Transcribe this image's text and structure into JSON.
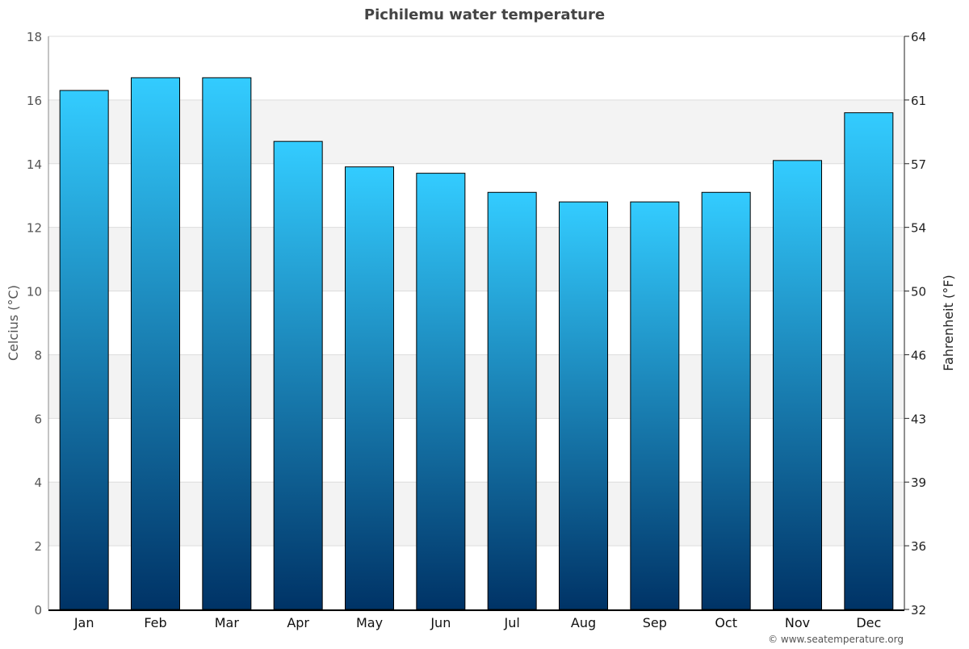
{
  "chart_data": {
    "type": "bar",
    "title": "Pichilemu water temperature",
    "ylabel": "Celcius (°C)",
    "ylabel_right": "Fahrenheit (°F)",
    "categories": [
      "Jan",
      "Feb",
      "Mar",
      "Apr",
      "May",
      "Jun",
      "Jul",
      "Aug",
      "Sep",
      "Oct",
      "Nov",
      "Dec"
    ],
    "values": [
      16.3,
      16.7,
      16.7,
      14.7,
      13.9,
      13.7,
      13.1,
      12.8,
      12.8,
      13.1,
      14.1,
      15.6
    ],
    "ylim": [
      0,
      18
    ],
    "yticks": [
      0,
      2,
      4,
      6,
      8,
      10,
      12,
      14,
      16,
      18
    ],
    "yticks_right": [
      "32",
      "36",
      "39",
      "43",
      "46",
      "50",
      "54",
      "57",
      "61",
      "64"
    ],
    "grid": true,
    "colors": {
      "bar_top": "#33ccff",
      "bar_bottom": "#003366",
      "band": "#f3f3f3"
    },
    "credit": "© www.seatemperature.org"
  }
}
